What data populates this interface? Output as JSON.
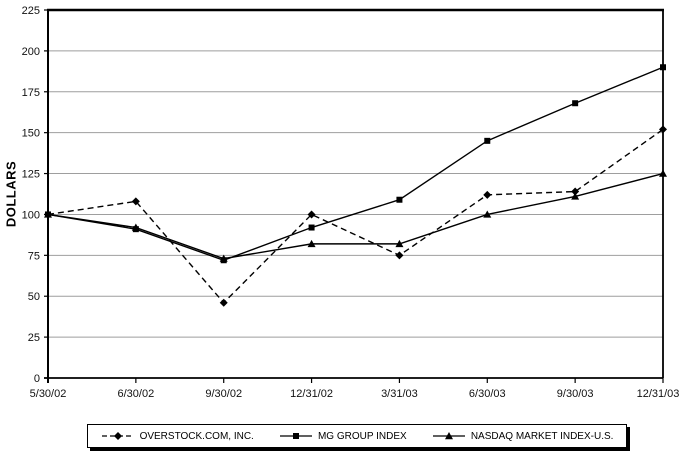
{
  "chart_data": {
    "type": "line",
    "title": "",
    "xlabel": "",
    "ylabel": "DOLLARS",
    "ylim": [
      0,
      225
    ],
    "y_ticks": [
      0,
      25,
      50,
      75,
      100,
      125,
      150,
      175,
      200,
      225
    ],
    "categories": [
      "5/30/02",
      "6/30/02",
      "9/30/02",
      "12/31/02",
      "3/31/03",
      "6/30/03",
      "9/30/03",
      "12/31/03"
    ],
    "series": [
      {
        "name": "OVERSTOCK.COM, INC.",
        "marker": "diamond",
        "line": "dashed",
        "values": [
          100,
          108,
          46,
          100,
          75,
          112,
          114,
          152
        ]
      },
      {
        "name": "MG GROUP INDEX",
        "marker": "square",
        "line": "solid",
        "values": [
          100,
          91,
          72,
          92,
          109,
          145,
          168,
          190
        ]
      },
      {
        "name": "NASDAQ MARKET INDEX-U.S.",
        "marker": "triangle",
        "line": "solid",
        "values": [
          100,
          92,
          73,
          82,
          82,
          100,
          111,
          125
        ]
      }
    ],
    "grid": true,
    "legend_position": "bottom",
    "colors": {
      "line": "#000000",
      "grid": "#9e9e9e",
      "background": "#ffffff",
      "text": "#111111"
    }
  }
}
